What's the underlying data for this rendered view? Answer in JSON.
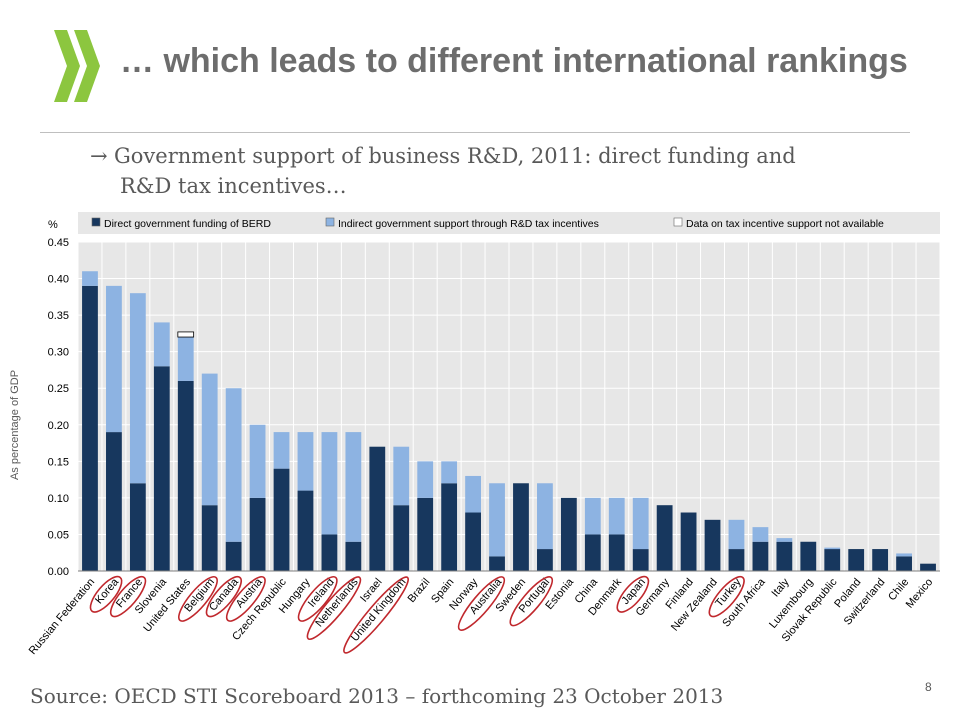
{
  "slide": {
    "title": "… which leads to different international rankings",
    "subtitle_arrow": "→",
    "subtitle_line1": "Government support of business R&D, 2011: direct funding and",
    "subtitle_line2": "R&D tax incentives…",
    "source": "Source: OECD STI Scoreboard 2013 – forthcoming 23 October 2013",
    "page_number": "8",
    "logo_color": "#8cc63f"
  },
  "chart_data": {
    "type": "bar",
    "stacked": true,
    "ylabel": "As percentage of GDP",
    "unit_label": "%",
    "ylim": [
      0,
      0.45
    ],
    "yticks": [
      "0.00",
      "0.05",
      "0.10",
      "0.15",
      "0.20",
      "0.25",
      "0.30",
      "0.35",
      "0.40",
      "0.45"
    ],
    "grid": true,
    "legend_position": "top",
    "categories": [
      "Russian Federation",
      "Korea",
      "France",
      "Slovenia",
      "United States",
      "Belgium",
      "Canada",
      "Austria",
      "Czech Republic",
      "Hungary",
      "Ireland",
      "Netherlands",
      "Israel",
      "United Kingdom",
      "Brazil",
      "Spain",
      "Norway",
      "Australia",
      "Sweden",
      "Portugal",
      "Estonia",
      "China",
      "Denmark",
      "Japan",
      "Germany",
      "Finland",
      "New Zealand",
      "Turkey",
      "South Africa",
      "Italy",
      "Luxembourg",
      "Slovak Republic",
      "Poland",
      "Switzerland",
      "Chile",
      "Mexico"
    ],
    "circled": [
      "Korea",
      "France",
      "Belgium",
      "Canada",
      "Austria",
      "Ireland",
      "Netherlands",
      "United Kingdom",
      "Australia",
      "Portugal",
      "Japan",
      "Turkey"
    ],
    "series": [
      {
        "name": "Direct government funding of BERD",
        "color": "#17375e",
        "values": [
          0.39,
          0.19,
          0.12,
          0.28,
          0.26,
          0.09,
          0.04,
          0.1,
          0.14,
          0.11,
          0.05,
          0.04,
          0.17,
          0.09,
          0.1,
          0.12,
          0.08,
          0.02,
          0.12,
          0.03,
          0.1,
          0.05,
          0.05,
          0.03,
          0.09,
          0.08,
          0.07,
          0.03,
          0.04,
          0.04,
          0.04,
          0.03,
          0.03,
          0.03,
          0.02,
          0.01
        ]
      },
      {
        "name": "Indirect government support through R&D tax incentives",
        "color": "#8db3e2",
        "values": [
          0.02,
          0.2,
          0.26,
          0.06,
          0.06,
          0.18,
          0.21,
          0.1,
          0.05,
          0.08,
          0.14,
          0.15,
          0.0,
          0.08,
          0.05,
          0.03,
          0.05,
          0.1,
          0.0,
          0.09,
          0.0,
          0.05,
          0.05,
          0.07,
          0.0,
          0.0,
          0.0,
          0.04,
          0.02,
          0.005,
          0.0,
          0.002,
          0.0,
          0.0,
          0.004,
          0.0
        ]
      },
      {
        "name": "Data on tax incentive support not available",
        "color": "#ffffff",
        "values": [
          0,
          0,
          0,
          0,
          0.007,
          0,
          0,
          0,
          0,
          0,
          0,
          0,
          0,
          0,
          0,
          0,
          0,
          0,
          0,
          0,
          0,
          0,
          0,
          0,
          0,
          0,
          0,
          0,
          0,
          0,
          0,
          0,
          0,
          0,
          0,
          0
        ]
      }
    ]
  }
}
